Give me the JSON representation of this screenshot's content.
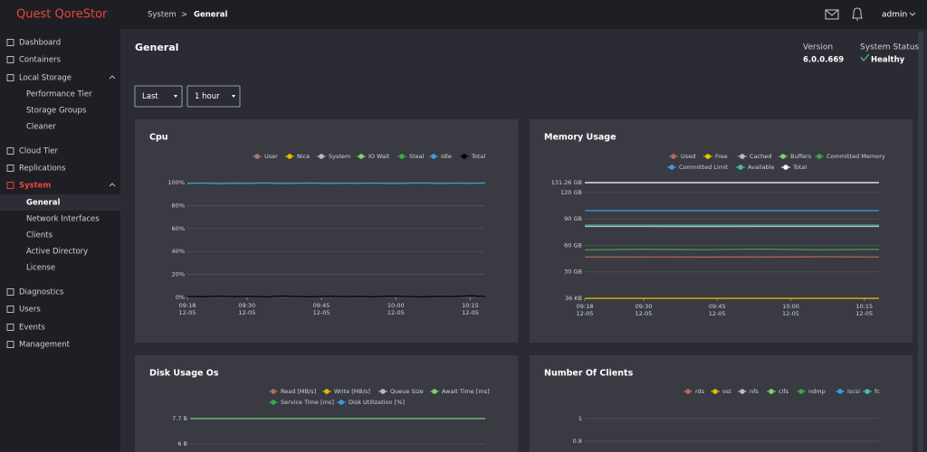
{
  "brand": "Quest QoreStor",
  "breadcrumb": [
    "System",
    "General"
  ],
  "breadcrumb_separator": ">",
  "user": "admin",
  "nav": [
    {
      "label": "Dashboard",
      "level": 1
    },
    {
      "label": "Containers",
      "level": 1
    },
    {
      "label": "Local Storage",
      "level": 1
    },
    {
      "label": "Performance Tier",
      "level": 2
    },
    {
      "label": "Storage Groups",
      "level": 2
    },
    {
      "label": "Cleaner",
      "level": 2
    },
    {
      "label": "Cloud Tier",
      "level": 1
    },
    {
      "label": "Replications",
      "level": 1
    },
    {
      "label": "System",
      "level": 1,
      "active": true
    },
    {
      "label": "General",
      "level": 2,
      "selected": true
    },
    {
      "label": "Network Interfaces",
      "level": 2
    },
    {
      "label": "Clients",
      "level": 2
    },
    {
      "label": "Active Directory",
      "level": 2
    },
    {
      "label": "License",
      "level": 2
    },
    {
      "label": "Diagnostics",
      "level": 1
    },
    {
      "label": "Users",
      "level": 1
    },
    {
      "label": "Events",
      "level": 1
    },
    {
      "label": "Management",
      "level": 1
    }
  ],
  "header": {
    "title": "General",
    "version_label": "Version",
    "version": "6.0.0.669",
    "status_label": "System Status",
    "status": "Healthy"
  },
  "controls": {
    "range": "Last",
    "period": "1 hour"
  },
  "charts": [
    {
      "type": "line",
      "title": "Cpu",
      "xlim": [
        "09:18",
        "10:18"
      ],
      "xticks": [
        {
          "time": "09:18",
          "date": "12-05"
        },
        {
          "time": "09:30",
          "date": "12-05"
        },
        {
          "time": "09:45",
          "date": "12-05"
        },
        {
          "time": "10:00",
          "date": "12-05"
        },
        {
          "time": "10:15",
          "date": "12-05"
        }
      ],
      "ylim": [
        0,
        100
      ],
      "yticks": [
        {
          "value": 0,
          "label": "0%"
        },
        {
          "value": 20,
          "label": "20%"
        },
        {
          "value": 40,
          "label": "40%"
        },
        {
          "value": 60,
          "label": "60%"
        },
        {
          "value": 80,
          "label": "80%"
        },
        {
          "value": 100,
          "label": "100%"
        }
      ],
      "grid": true,
      "series": [
        {
          "name": "User",
          "color": "#a87a74"
        },
        {
          "name": "Nice",
          "color": "#e6b800"
        },
        {
          "name": "System",
          "color": "#bbbbbb"
        },
        {
          "name": "IO Wait",
          "color": "#7cd46b"
        },
        {
          "name": "Steal",
          "color": "#3ea83e"
        },
        {
          "name": "Idle",
          "color": "#3b9ddd",
          "values": [
            99.3,
            99.6,
            99.1,
            99.5,
            99.4,
            99.7,
            99.2,
            99.5,
            99.6,
            99.3,
            99.5,
            99.4,
            99.6,
            99.2,
            99.5,
            99.7,
            99.3,
            99.5,
            99.4,
            99.6
          ]
        },
        {
          "name": "Total",
          "color": "#000000",
          "values": [
            0.8,
            0.5,
            1.1,
            0.6,
            0.9,
            0.4,
            1.2,
            0.7,
            0.5,
            1.0,
            0.6,
            0.8,
            0.5,
            1.1,
            0.7,
            0.4,
            0.9,
            0.6,
            1.5,
            0.7
          ]
        }
      ]
    },
    {
      "type": "line",
      "title": "Memory Usage",
      "xlim": [
        "09:18",
        "10:18"
      ],
      "xticks": [
        {
          "time": "09:18",
          "date": "12-05"
        },
        {
          "time": "09:30",
          "date": "12-05"
        },
        {
          "time": "09:45",
          "date": "12-05"
        },
        {
          "time": "10:00",
          "date": "12-05"
        },
        {
          "time": "10:15",
          "date": "12-05"
        }
      ],
      "ylim": [
        3.6e-05,
        131.26
      ],
      "yticks": [
        {
          "value": 3.6e-05,
          "label": "36 KB"
        },
        {
          "value": 30,
          "label": "30 GB"
        },
        {
          "value": 60,
          "label": "60 GB"
        },
        {
          "value": 90,
          "label": "90 GB"
        },
        {
          "value": 120,
          "label": "120 GB"
        },
        {
          "value": 131.26,
          "label": "131.26 GB"
        }
      ],
      "grid": true,
      "series": [
        {
          "name": "Used",
          "color": "#b86a5e",
          "values": [
            47,
            47,
            46.8,
            47,
            47.1,
            47
          ]
        },
        {
          "name": "Free",
          "color": "#e6c800",
          "values": [
            3.6e-05,
            3.6e-05,
            3.6e-05,
            3.6e-05,
            3.6e-05,
            3.6e-05
          ]
        },
        {
          "name": "Cached",
          "color": "#bbbbbb",
          "values": [
            81.5,
            81.5,
            81.4,
            81.5,
            81.5,
            81.5
          ]
        },
        {
          "name": "Buffers",
          "color": "#7cd46b"
        },
        {
          "name": "Committed Memory",
          "color": "#3ea83e",
          "values": [
            55,
            55.6,
            55.2,
            55.8,
            55.1,
            55.5
          ]
        },
        {
          "name": "Committed Limit",
          "color": "#3b9ddd",
          "values": [
            99.5,
            99.5,
            99.5,
            99.5,
            99.5,
            99.5
          ]
        },
        {
          "name": "Available",
          "color": "#4cb8b8",
          "values": [
            83,
            83,
            82.9,
            83,
            83,
            83
          ]
        },
        {
          "name": "Total",
          "color": "#ffffff",
          "values": [
            131.26,
            131.26,
            131.26,
            131.26,
            131.26,
            131.26
          ]
        }
      ]
    },
    {
      "type": "line",
      "title": "Disk Usage Os",
      "xlim": [
        "09:18",
        "10:18"
      ],
      "ylim": [
        0,
        7.7
      ],
      "yticks": [
        {
          "value": 6,
          "label": "6 B"
        },
        {
          "value": 7.7,
          "label": "7.7 B"
        }
      ],
      "grid": true,
      "series": [
        {
          "name": "Read [MB/s]",
          "color": "#b86a5e"
        },
        {
          "name": "Write [MB/s]",
          "color": "#e6b800"
        },
        {
          "name": "Queue Size",
          "color": "#bbbbbb"
        },
        {
          "name": "Await Time [ms]",
          "color": "#7cd46b",
          "values": [
            7.7,
            7.7,
            7.7,
            7.7,
            7.7,
            7.7
          ]
        },
        {
          "name": "Service Time [ms]",
          "color": "#3ea83e"
        },
        {
          "name": "Disk Utilization [%]",
          "color": "#3b9ddd"
        }
      ]
    },
    {
      "type": "line",
      "title": "Number Of Clients",
      "xlim": [
        "09:18",
        "10:18"
      ],
      "ylim": [
        0,
        1
      ],
      "yticks": [
        0.8,
        1
      ],
      "grid": true,
      "series": [
        {
          "name": "rds",
          "color": "#b86a5e"
        },
        {
          "name": "ost",
          "color": "#e6b800"
        },
        {
          "name": "nfs",
          "color": "#bbbbbb"
        },
        {
          "name": "cifs",
          "color": "#7cd46b"
        },
        {
          "name": "ndmp",
          "color": "#3ea83e"
        },
        {
          "name": "iscsi",
          "color": "#3b9ddd"
        },
        {
          "name": "fc",
          "color": "#4cb8b8"
        }
      ]
    }
  ]
}
